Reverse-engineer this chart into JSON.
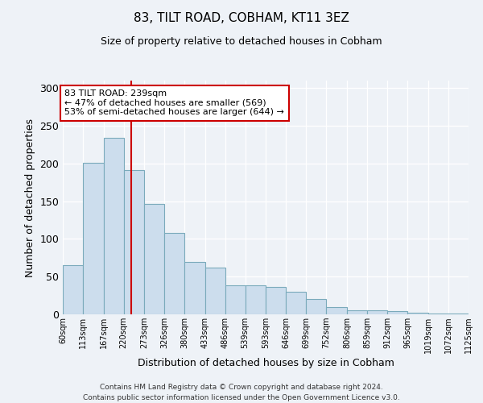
{
  "title": "83, TILT ROAD, COBHAM, KT11 3EZ",
  "subtitle": "Size of property relative to detached houses in Cobham",
  "xlabel": "Distribution of detached houses by size in Cobham",
  "ylabel": "Number of detached properties",
  "bar_edges": [
    60,
    113,
    167,
    220,
    273,
    326,
    380,
    433,
    486,
    539,
    593,
    646,
    699,
    752,
    806,
    859,
    912,
    965,
    1019,
    1072,
    1125
  ],
  "bar_heights": [
    65,
    201,
    234,
    191,
    146,
    108,
    70,
    62,
    39,
    38,
    36,
    30,
    20,
    10,
    5,
    5,
    4,
    2,
    1,
    1
  ],
  "bar_facecolor": "#ccdded",
  "bar_edgecolor": "#7aaabb",
  "vline_x": 239,
  "vline_color": "#cc0000",
  "annotation_line1": "83 TILT ROAD: 239sqm",
  "annotation_line2": "← 47% of detached houses are smaller (569)",
  "annotation_line3": "53% of semi-detached houses are larger (644) →",
  "annotation_box_edgecolor": "#cc0000",
  "annotation_box_facecolor": "#ffffff",
  "ylim": [
    0,
    310
  ],
  "yticks": [
    0,
    50,
    100,
    150,
    200,
    250,
    300
  ],
  "background_color": "#eef2f7",
  "grid_color": "#ffffff",
  "footer_line1": "Contains HM Land Registry data © Crown copyright and database right 2024.",
  "footer_line2": "Contains public sector information licensed under the Open Government Licence v3.0."
}
